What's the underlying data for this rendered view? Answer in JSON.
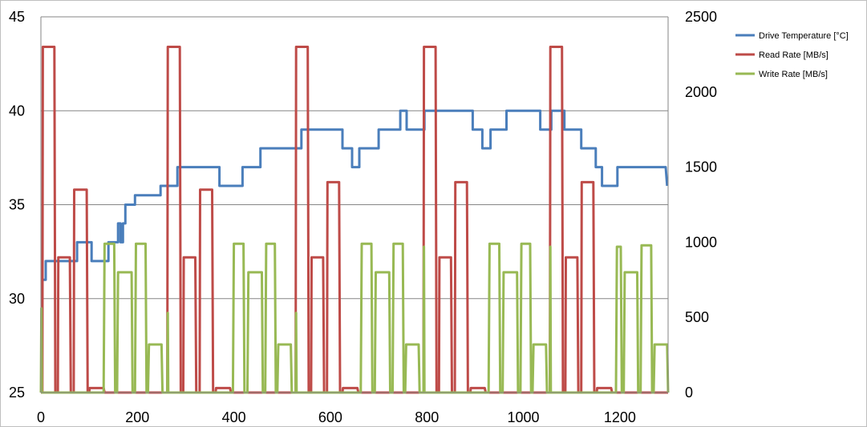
{
  "chart_data": {
    "type": "line",
    "x_ticks": [
      "0",
      "200",
      "400",
      "600",
      "800",
      "1000",
      "1200"
    ],
    "xlim": [
      0,
      1300
    ],
    "y_left_ticks": [
      "25",
      "30",
      "35",
      "40",
      "45"
    ],
    "ylim_left": [
      25,
      45
    ],
    "y_right_ticks": [
      "0",
      "500",
      "1000",
      "1500",
      "2000",
      "2500"
    ],
    "ylim_right": [
      0,
      2500
    ],
    "grid": "horizontal",
    "legend_position": "top-right",
    "series": [
      {
        "name": "Drive Temperature [°C]",
        "color": "#4a7ebb",
        "axis": "left",
        "points": [
          [
            0,
            31
          ],
          [
            10,
            31
          ],
          [
            10,
            32
          ],
          [
            75,
            32
          ],
          [
            75,
            33
          ],
          [
            105,
            33
          ],
          [
            105,
            32
          ],
          [
            140,
            32
          ],
          [
            140,
            33
          ],
          [
            160,
            33
          ],
          [
            160,
            34
          ],
          [
            165,
            34
          ],
          [
            165,
            33
          ],
          [
            170,
            33
          ],
          [
            170,
            34
          ],
          [
            175,
            34
          ],
          [
            175,
            35
          ],
          [
            195,
            35
          ],
          [
            195,
            35.5
          ],
          [
            248,
            35.5
          ],
          [
            248,
            36
          ],
          [
            283,
            36
          ],
          [
            283,
            37
          ],
          [
            370,
            37
          ],
          [
            370,
            36
          ],
          [
            418,
            36
          ],
          [
            418,
            37
          ],
          [
            455,
            37
          ],
          [
            455,
            38
          ],
          [
            540,
            38
          ],
          [
            540,
            39
          ],
          [
            625,
            39
          ],
          [
            625,
            38
          ],
          [
            645,
            38
          ],
          [
            645,
            37
          ],
          [
            660,
            37
          ],
          [
            660,
            38
          ],
          [
            700,
            38
          ],
          [
            700,
            39
          ],
          [
            745,
            39
          ],
          [
            745,
            40
          ],
          [
            758,
            40
          ],
          [
            758,
            39
          ],
          [
            795,
            39
          ],
          [
            795,
            40
          ],
          [
            895,
            40
          ],
          [
            895,
            39
          ],
          [
            915,
            39
          ],
          [
            915,
            38
          ],
          [
            932,
            38
          ],
          [
            932,
            39
          ],
          [
            965,
            39
          ],
          [
            965,
            40
          ],
          [
            1035,
            40
          ],
          [
            1035,
            39
          ],
          [
            1058,
            39
          ],
          [
            1058,
            40
          ],
          [
            1085,
            40
          ],
          [
            1085,
            39
          ],
          [
            1120,
            39
          ],
          [
            1120,
            38
          ],
          [
            1150,
            38
          ],
          [
            1150,
            37
          ],
          [
            1163,
            37
          ],
          [
            1163,
            36
          ],
          [
            1195,
            36
          ],
          [
            1195,
            37
          ],
          [
            1295,
            37
          ],
          [
            1298,
            36
          ]
        ]
      },
      {
        "name": "Read Rate [MB/s]",
        "color": "#be4b48",
        "axis": "right",
        "points": [
          [
            0,
            0
          ],
          [
            3,
            0
          ],
          [
            4,
            2300
          ],
          [
            28,
            2300
          ],
          [
            30,
            0
          ],
          [
            35,
            0
          ],
          [
            36,
            900
          ],
          [
            60,
            900
          ],
          [
            62,
            0
          ],
          [
            68,
            0
          ],
          [
            69,
            1350
          ],
          [
            95,
            1350
          ],
          [
            97,
            0
          ],
          [
            100,
            0
          ],
          [
            101,
            30
          ],
          [
            130,
            30
          ],
          [
            132,
            0
          ],
          [
            262,
            0
          ],
          [
            263,
            2300
          ],
          [
            288,
            2300
          ],
          [
            290,
            0
          ],
          [
            295,
            0
          ],
          [
            296,
            900
          ],
          [
            320,
            900
          ],
          [
            322,
            0
          ],
          [
            329,
            0
          ],
          [
            330,
            1350
          ],
          [
            355,
            1350
          ],
          [
            357,
            0
          ],
          [
            362,
            0
          ],
          [
            363,
            30
          ],
          [
            392,
            30
          ],
          [
            394,
            0
          ],
          [
            528,
            0
          ],
          [
            529,
            2300
          ],
          [
            553,
            2300
          ],
          [
            555,
            0
          ],
          [
            560,
            0
          ],
          [
            561,
            900
          ],
          [
            585,
            900
          ],
          [
            587,
            0
          ],
          [
            593,
            0
          ],
          [
            594,
            1400
          ],
          [
            618,
            1400
          ],
          [
            620,
            0
          ],
          [
            625,
            0
          ],
          [
            626,
            30
          ],
          [
            656,
            30
          ],
          [
            658,
            0
          ],
          [
            793,
            0
          ],
          [
            794,
            2300
          ],
          [
            818,
            2300
          ],
          [
            820,
            0
          ],
          [
            825,
            0
          ],
          [
            826,
            900
          ],
          [
            850,
            900
          ],
          [
            852,
            0
          ],
          [
            858,
            0
          ],
          [
            859,
            1400
          ],
          [
            883,
            1400
          ],
          [
            885,
            0
          ],
          [
            890,
            0
          ],
          [
            891,
            30
          ],
          [
            920,
            30
          ],
          [
            922,
            0
          ],
          [
            1055,
            0
          ],
          [
            1056,
            2300
          ],
          [
            1080,
            2300
          ],
          [
            1082,
            0
          ],
          [
            1087,
            0
          ],
          [
            1088,
            900
          ],
          [
            1112,
            900
          ],
          [
            1114,
            0
          ],
          [
            1120,
            0
          ],
          [
            1121,
            1400
          ],
          [
            1145,
            1400
          ],
          [
            1147,
            0
          ],
          [
            1152,
            0
          ],
          [
            1153,
            30
          ],
          [
            1182,
            30
          ],
          [
            1184,
            0
          ],
          [
            1300,
            0
          ]
        ]
      },
      {
        "name": "Write Rate [MB/s]",
        "color": "#98b954",
        "axis": "right",
        "points": [
          [
            0,
            0
          ],
          [
            1,
            560
          ],
          [
            2,
            0
          ],
          [
            130,
            0
          ],
          [
            132,
            990
          ],
          [
            152,
            990
          ],
          [
            154,
            0
          ],
          [
            158,
            0
          ],
          [
            160,
            800
          ],
          [
            188,
            800
          ],
          [
            190,
            0
          ],
          [
            195,
            0
          ],
          [
            197,
            990
          ],
          [
            217,
            990
          ],
          [
            219,
            0
          ],
          [
            222,
            0
          ],
          [
            224,
            320
          ],
          [
            250,
            320
          ],
          [
            252,
            0
          ],
          [
            262,
            0
          ],
          [
            263,
            530
          ],
          [
            264,
            0
          ],
          [
            398,
            0
          ],
          [
            400,
            990
          ],
          [
            420,
            990
          ],
          [
            422,
            0
          ],
          [
            428,
            0
          ],
          [
            430,
            800
          ],
          [
            458,
            800
          ],
          [
            460,
            0
          ],
          [
            465,
            0
          ],
          [
            467,
            990
          ],
          [
            485,
            990
          ],
          [
            487,
            0
          ],
          [
            490,
            0
          ],
          [
            492,
            320
          ],
          [
            518,
            320
          ],
          [
            520,
            0
          ],
          [
            528,
            0
          ],
          [
            529,
            530
          ],
          [
            530,
            0
          ],
          [
            663,
            0
          ],
          [
            665,
            990
          ],
          [
            685,
            990
          ],
          [
            687,
            0
          ],
          [
            692,
            0
          ],
          [
            694,
            800
          ],
          [
            722,
            800
          ],
          [
            724,
            0
          ],
          [
            729,
            0
          ],
          [
            731,
            990
          ],
          [
            750,
            990
          ],
          [
            752,
            0
          ],
          [
            755,
            0
          ],
          [
            757,
            320
          ],
          [
            783,
            320
          ],
          [
            785,
            0
          ],
          [
            793,
            0
          ],
          [
            794,
            970
          ],
          [
            795,
            0
          ],
          [
            928,
            0
          ],
          [
            930,
            990
          ],
          [
            950,
            990
          ],
          [
            952,
            0
          ],
          [
            957,
            0
          ],
          [
            959,
            800
          ],
          [
            987,
            800
          ],
          [
            989,
            0
          ],
          [
            994,
            0
          ],
          [
            996,
            990
          ],
          [
            1014,
            990
          ],
          [
            1016,
            0
          ],
          [
            1019,
            0
          ],
          [
            1021,
            320
          ],
          [
            1047,
            320
          ],
          [
            1049,
            0
          ],
          [
            1055,
            0
          ],
          [
            1056,
            970
          ],
          [
            1057,
            0
          ],
          [
            1192,
            0
          ],
          [
            1194,
            970
          ],
          [
            1202,
            970
          ],
          [
            1204,
            0
          ],
          [
            1208,
            0
          ],
          [
            1210,
            800
          ],
          [
            1236,
            800
          ],
          [
            1238,
            0
          ],
          [
            1243,
            0
          ],
          [
            1245,
            980
          ],
          [
            1265,
            980
          ],
          [
            1267,
            0
          ],
          [
            1270,
            0
          ],
          [
            1272,
            320
          ],
          [
            1298,
            320
          ],
          [
            1300,
            0
          ]
        ]
      }
    ]
  }
}
